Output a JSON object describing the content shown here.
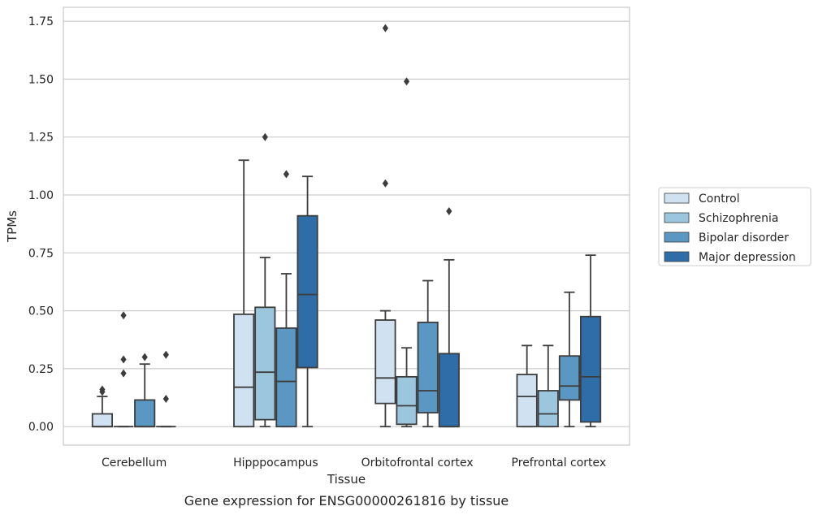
{
  "chart_data": {
    "type": "box",
    "title": "",
    "caption": "Gene expression for ENSG00000261816 by tissue",
    "xlabel": "Tissue",
    "ylabel": "TPMs",
    "ylim": [
      -0.08,
      1.81
    ],
    "yticks": [
      "0.00",
      "0.25",
      "0.50",
      "0.75",
      "1.00",
      "1.25",
      "1.50",
      "1.75"
    ],
    "grid": "horizontal",
    "legend_position": "right",
    "categories": [
      "Cerebellum",
      "Hipppocampus",
      "Orbitofrontal cortex",
      "Prefrontal cortex"
    ],
    "series": [
      {
        "name": "Control",
        "color": "#d0e1f2",
        "boxes": [
          {
            "whisker_low": 0.0,
            "q1": 0.0,
            "median": 0.0,
            "q3": 0.055,
            "whisker_high": 0.13,
            "outliers": [
              0.15,
              0.16
            ]
          },
          {
            "whisker_low": 0.0,
            "q1": 0.0,
            "median": 0.17,
            "q3": 0.485,
            "whisker_high": 1.15,
            "outliers": []
          },
          {
            "whisker_low": 0.0,
            "q1": 0.1,
            "median": 0.21,
            "q3": 0.46,
            "whisker_high": 0.5,
            "outliers": [
              1.05,
              1.72
            ]
          },
          {
            "whisker_low": 0.0,
            "q1": 0.0,
            "median": 0.13,
            "q3": 0.225,
            "whisker_high": 0.35,
            "outliers": []
          }
        ]
      },
      {
        "name": "Schizophrenia",
        "color": "#9cc6dd",
        "boxes": [
          {
            "whisker_low": 0.0,
            "q1": 0.0,
            "median": 0.0,
            "q3": 0.0,
            "whisker_high": 0.0,
            "outliers": [
              0.23,
              0.29,
              0.48
            ]
          },
          {
            "whisker_low": 0.0,
            "q1": 0.03,
            "median": 0.235,
            "q3": 0.515,
            "whisker_high": 0.73,
            "outliers": [
              1.25
            ]
          },
          {
            "whisker_low": 0.0,
            "q1": 0.01,
            "median": 0.09,
            "q3": 0.215,
            "whisker_high": 0.34,
            "outliers": [
              1.49
            ]
          },
          {
            "whisker_low": 0.0,
            "q1": 0.0,
            "median": 0.055,
            "q3": 0.155,
            "whisker_high": 0.35,
            "outliers": []
          }
        ]
      },
      {
        "name": "Bipolar disorder",
        "color": "#5a97c2",
        "boxes": [
          {
            "whisker_low": 0.0,
            "q1": 0.0,
            "median": 0.0,
            "q3": 0.115,
            "whisker_high": 0.27,
            "outliers": [
              0.3
            ]
          },
          {
            "whisker_low": 0.0,
            "q1": 0.0,
            "median": 0.195,
            "q3": 0.425,
            "whisker_high": 0.66,
            "outliers": [
              1.09
            ]
          },
          {
            "whisker_low": 0.0,
            "q1": 0.06,
            "median": 0.155,
            "q3": 0.45,
            "whisker_high": 0.63,
            "outliers": []
          },
          {
            "whisker_low": 0.0,
            "q1": 0.115,
            "median": 0.175,
            "q3": 0.305,
            "whisker_high": 0.58,
            "outliers": []
          }
        ]
      },
      {
        "name": "Major depression",
        "color": "#2f6da8",
        "boxes": [
          {
            "whisker_low": 0.0,
            "q1": 0.0,
            "median": 0.0,
            "q3": 0.0,
            "whisker_high": 0.0,
            "outliers": [
              0.12,
              0.31
            ]
          },
          {
            "whisker_low": 0.0,
            "q1": 0.255,
            "median": 0.57,
            "q3": 0.91,
            "whisker_high": 1.08,
            "outliers": []
          },
          {
            "whisker_low": 0.0,
            "q1": 0.0,
            "median": 0.0,
            "q3": 0.315,
            "whisker_high": 0.72,
            "outliers": [
              0.93
            ]
          },
          {
            "whisker_low": 0.0,
            "q1": 0.02,
            "median": 0.215,
            "q3": 0.475,
            "whisker_high": 0.74,
            "outliers": []
          }
        ]
      }
    ]
  }
}
